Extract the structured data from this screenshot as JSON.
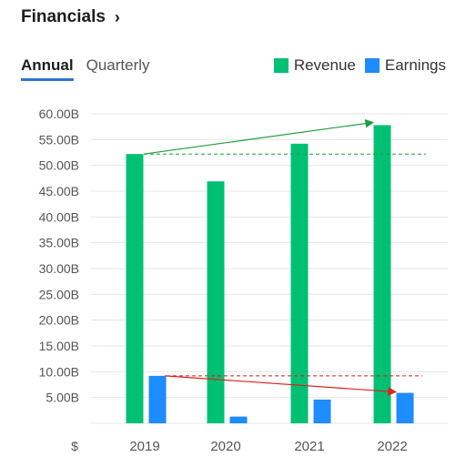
{
  "header": {
    "title": "Financials",
    "chevron": "›"
  },
  "tabs": [
    {
      "label": "Annual",
      "active": true
    },
    {
      "label": "Quarterly",
      "active": false
    }
  ],
  "legend": {
    "items": [
      {
        "label": "Revenue",
        "color": "#00c073"
      },
      {
        "label": "Earnings",
        "color": "#1e8bff"
      }
    ]
  },
  "chart_data": {
    "type": "bar",
    "categories": [
      "2019",
      "2020",
      "2021",
      "2022"
    ],
    "series": [
      {
        "name": "Revenue",
        "color": "#00c073",
        "values": [
          52.2,
          46.9,
          54.2,
          57.8
        ]
      },
      {
        "name": "Earnings",
        "color": "#1e8bff",
        "values": [
          9.2,
          1.3,
          4.6,
          5.9
        ]
      }
    ],
    "y_tick_labels": [
      "60.00B",
      "55.00B",
      "50.00B",
      "45.00B",
      "40.00B",
      "35.00B",
      "30.00B",
      "25.00B",
      "20.00B",
      "15.00B",
      "10.00B",
      "5.00B"
    ],
    "y_ticks": [
      60,
      55,
      50,
      45,
      40,
      35,
      30,
      25,
      20,
      15,
      10,
      5
    ],
    "x_axis_label": "$",
    "ylim": [
      0,
      60
    ],
    "grid": true,
    "legend_position": "top-right",
    "annotations": {
      "revenue_arrow": {
        "color": "#1e9e3c",
        "from": {
          "category": "2019",
          "value": 52.2
        },
        "to": {
          "category": "2022",
          "value": 57.8
        }
      },
      "revenue_ref_line": {
        "color": "#1e9e3c",
        "value": 52.2
      },
      "earnings_arrow": {
        "color": "#e02020",
        "from": {
          "category": "2019",
          "value": 9.2
        },
        "to": {
          "category": "2022",
          "value": 5.9
        }
      },
      "earnings_ref_line": {
        "color": "#c82020",
        "value": 9.2
      }
    }
  }
}
